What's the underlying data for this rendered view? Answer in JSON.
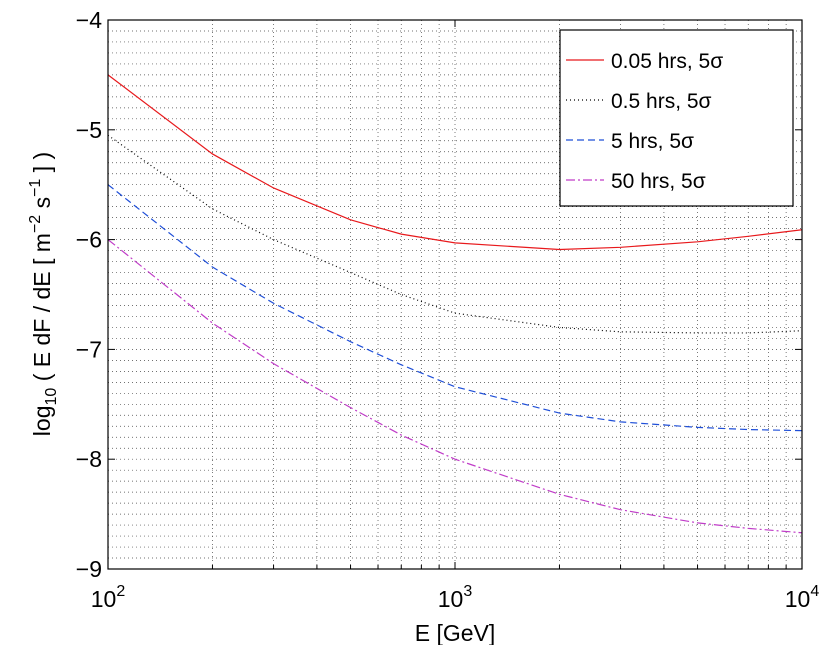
{
  "chart_data": {
    "type": "line",
    "title": "",
    "xlabel": "E [GeV]",
    "ylabel": {
      "prefix": "log",
      "sub": "10",
      "main": " ( E dF / dE [ m",
      "exp1": "−2",
      "mid": " s",
      "exp2": "−1",
      "suffix": " ] )"
    },
    "xscale": "log",
    "xlim": [
      100,
      10000
    ],
    "ylim": [
      -9,
      -4
    ],
    "grid": true,
    "legend_position": "top-right",
    "x_ticks": [
      {
        "value": 100,
        "base": "10",
        "exp": "2"
      },
      {
        "value": 1000,
        "base": "10",
        "exp": "3"
      },
      {
        "value": 10000,
        "base": "10",
        "exp": "4"
      }
    ],
    "y_ticks": [
      {
        "value": -9,
        "label": "−9"
      },
      {
        "value": -8,
        "label": "−8"
      },
      {
        "value": -7,
        "label": "−7"
      },
      {
        "value": -6,
        "label": "−6"
      },
      {
        "value": -5,
        "label": "−5"
      },
      {
        "value": -4,
        "label": "−4"
      }
    ],
    "x": [
      100,
      200,
      300,
      500,
      700,
      1000,
      2000,
      3000,
      5000,
      7000,
      10000
    ],
    "series": [
      {
        "name": "0.05 hrs, 5σ",
        "color": "#e8191c",
        "dash": "solid",
        "values": [
          -4.5,
          -5.22,
          -5.53,
          -5.82,
          -5.95,
          -6.03,
          -6.09,
          -6.07,
          -6.02,
          -5.97,
          -5.91
        ]
      },
      {
        "name": "0.5 hrs, 5σ",
        "color": "#000000",
        "dash": "dotted",
        "values": [
          -5.05,
          -5.72,
          -6.0,
          -6.3,
          -6.5,
          -6.67,
          -6.8,
          -6.84,
          -6.85,
          -6.85,
          -6.83
        ]
      },
      {
        "name": "5 hrs, 5σ",
        "color": "#1f4fd8",
        "dash": "dashed",
        "values": [
          -5.5,
          -6.25,
          -6.58,
          -6.93,
          -7.14,
          -7.34,
          -7.58,
          -7.66,
          -7.71,
          -7.73,
          -7.74
        ]
      },
      {
        "name": "50 hrs, 5σ",
        "color": "#c03cc8",
        "dash": "dashdot",
        "values": [
          -6.0,
          -6.76,
          -7.13,
          -7.53,
          -7.78,
          -8.0,
          -8.32,
          -8.46,
          -8.58,
          -8.63,
          -8.67
        ]
      }
    ]
  }
}
